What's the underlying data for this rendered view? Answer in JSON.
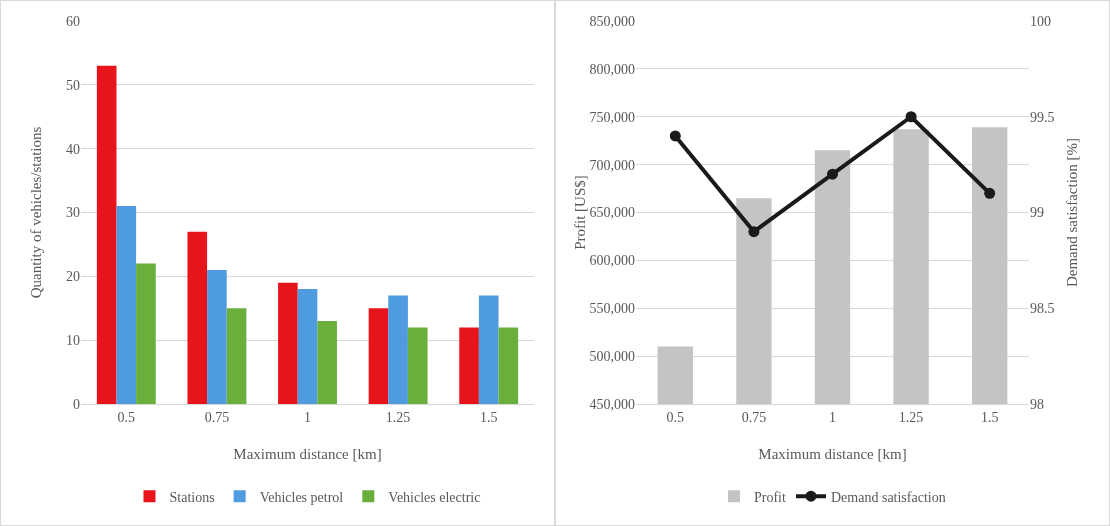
{
  "chart_data": [
    {
      "type": "bar",
      "categories": [
        "0.5",
        "0.75",
        "1",
        "1.25",
        "1.5"
      ],
      "xlabel": "Maximum distance [km]",
      "ylabel": "Quantity of vehicles/stations",
      "ylim": [
        0,
        60
      ],
      "yticks": [
        0,
        10,
        20,
        30,
        40,
        50,
        60
      ],
      "grid": "y",
      "legend": "bottom",
      "series": [
        {
          "name": "Stations",
          "color": "#e8141c",
          "values": [
            53,
            27,
            19,
            15,
            12
          ]
        },
        {
          "name": "Vehicles petrol",
          "color": "#4f9be0",
          "values": [
            31,
            21,
            18,
            17,
            17
          ]
        },
        {
          "name": "Vehicles electric",
          "color": "#6aae3c",
          "values": [
            22,
            15,
            13,
            12,
            12
          ]
        }
      ]
    },
    {
      "type": "bar",
      "categories": [
        "0.5",
        "0.75",
        "1",
        "1.25",
        "1.5"
      ],
      "xlabel": "Maximum distance [km]",
      "ylabel": "Profit [US$]",
      "y2label": "Demand satisfaction [%]",
      "ylim": [
        450000,
        850000
      ],
      "yticks": [
        {
          "value": 450000,
          "label": "450,000"
        },
        {
          "value": 500000,
          "label": "500,000"
        },
        {
          "value": 550000,
          "label": "550,000"
        },
        {
          "value": 600000,
          "label": "600,000"
        },
        {
          "value": 650000,
          "label": "650,000"
        },
        {
          "value": 700000,
          "label": "700,000"
        },
        {
          "value": 750000,
          "label": "750,000"
        },
        {
          "value": 800000,
          "label": "800,000"
        },
        {
          "value": 850000,
          "label": "850,000"
        }
      ],
      "y2lim": [
        98,
        100
      ],
      "y2ticks": [
        98,
        98.5,
        99,
        99.5,
        100
      ],
      "grid": "y",
      "legend": "bottom",
      "marker": "circle",
      "series": [
        {
          "name": "Profit",
          "type": "bar",
          "color": "#c3c4c5",
          "values": [
            510000,
            665000,
            715000,
            737000,
            739000
          ]
        },
        {
          "name": "Demand satisfaction",
          "type": "line",
          "axis": "y2",
          "color": "#1a1a1a",
          "values": [
            99.4,
            98.9,
            99.2,
            99.5,
            99.1
          ]
        }
      ]
    }
  ]
}
